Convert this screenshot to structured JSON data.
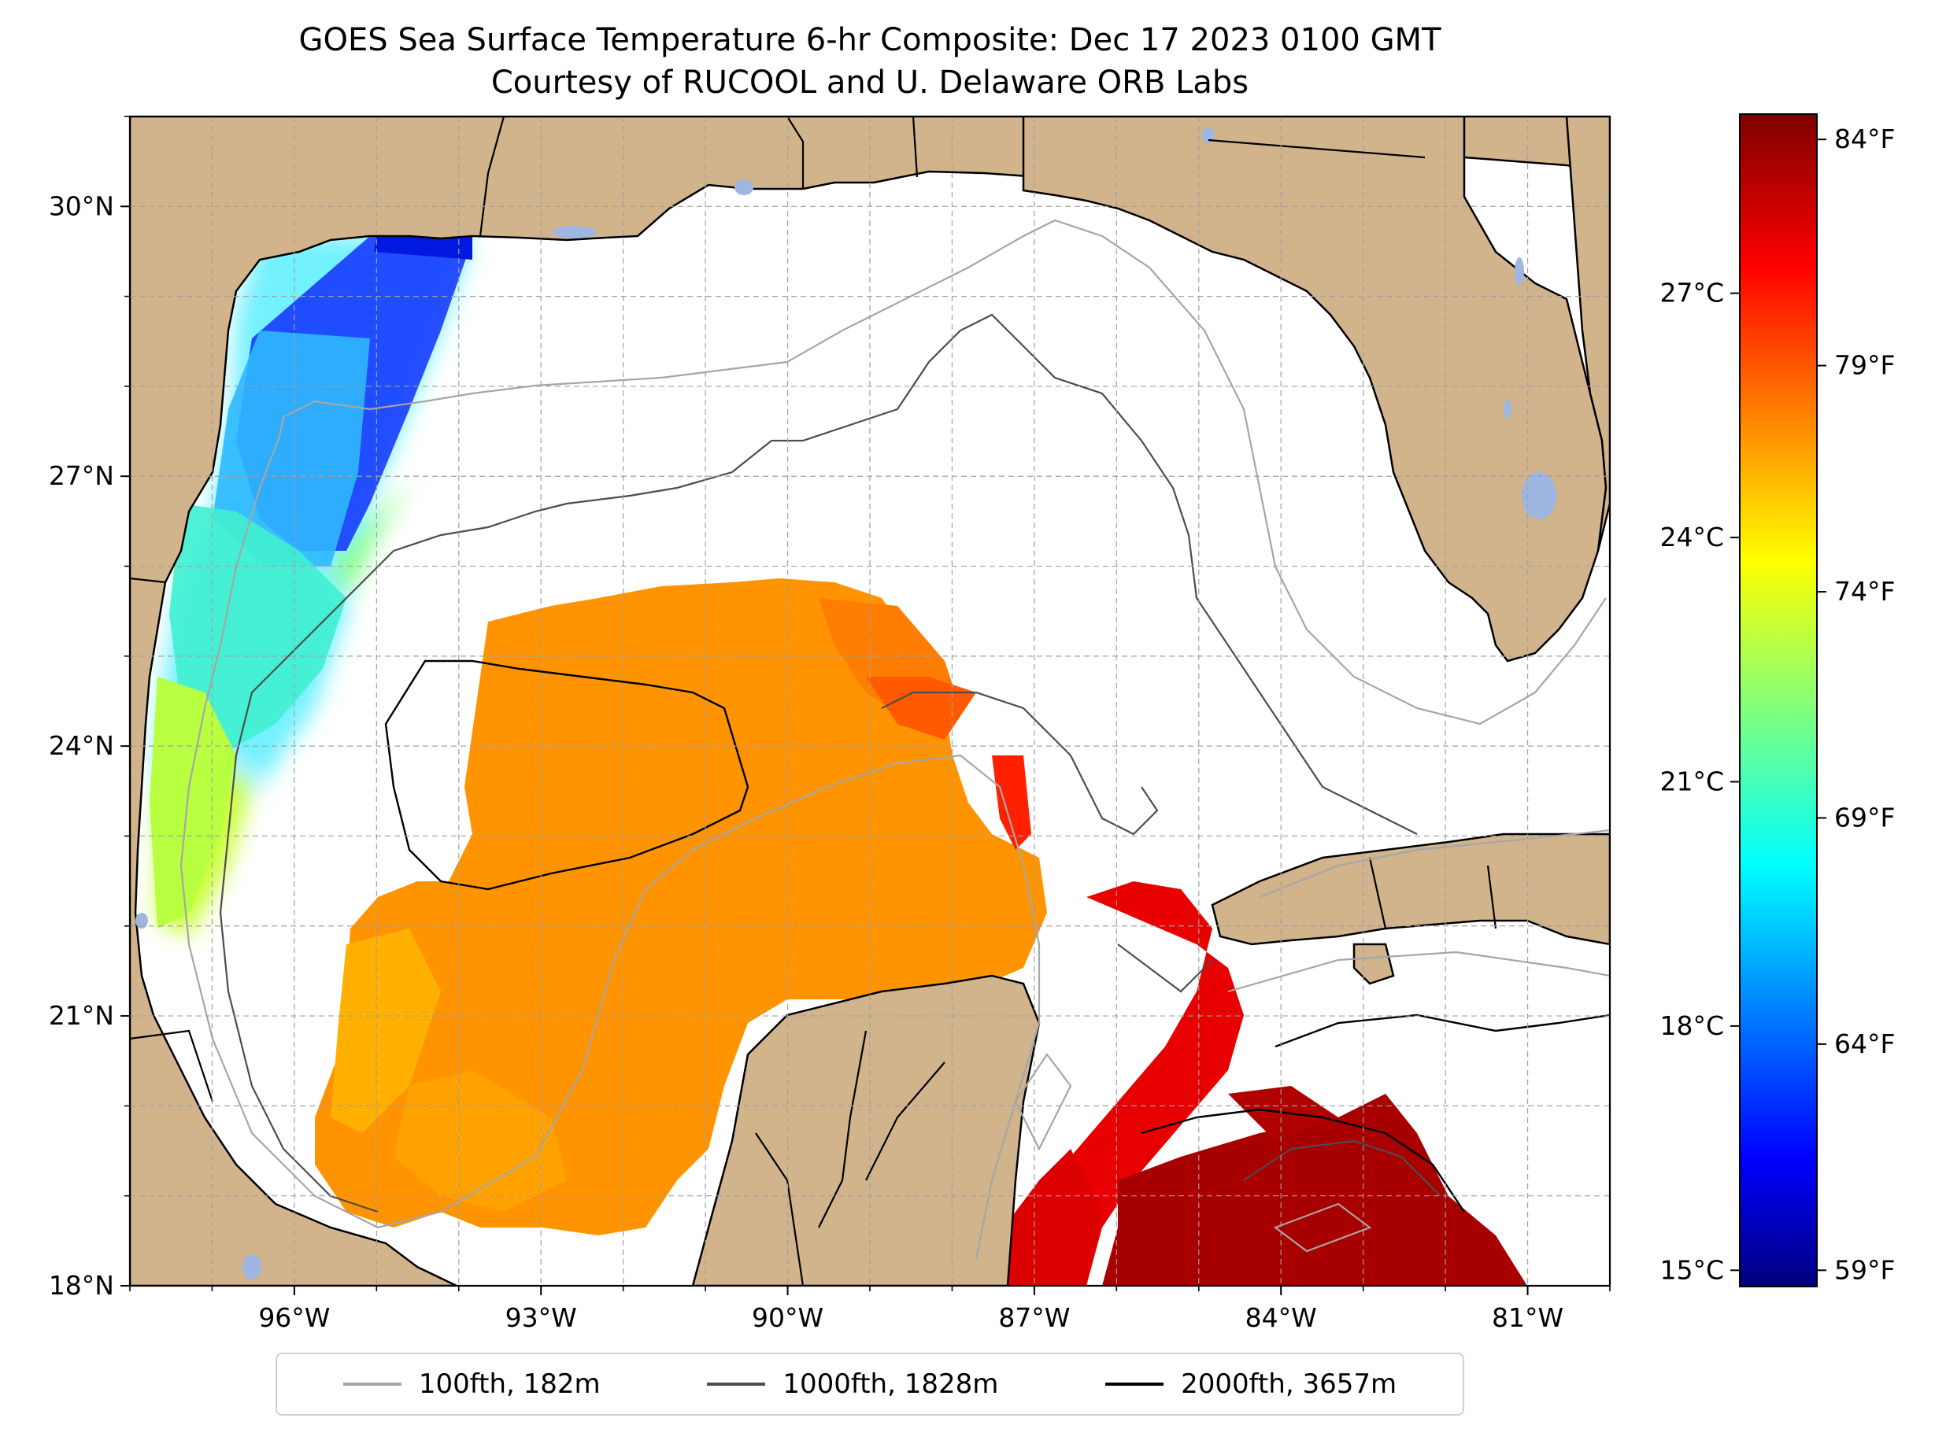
{
  "title": {
    "line1": "GOES Sea Surface Temperature 6-hr Composite: Dec 17 2023 0100 GMT",
    "line2": "Courtesy of RUCOOL and U. Delaware ORB Labs"
  },
  "map": {
    "lon_range": [
      -98,
      -80
    ],
    "lat_range": [
      18,
      31
    ],
    "lat_ticks": [
      {
        "value": 30,
        "label": "30°N"
      },
      {
        "value": 27,
        "label": "27°N"
      },
      {
        "value": 24,
        "label": "24°N"
      },
      {
        "value": 21,
        "label": "21°N"
      },
      {
        "value": 18,
        "label": "18°N"
      }
    ],
    "lon_ticks": [
      {
        "value": -96,
        "label": "96°W"
      },
      {
        "value": -93,
        "label": "93°W"
      },
      {
        "value": -90,
        "label": "90°W"
      },
      {
        "value": -87,
        "label": "87°W"
      },
      {
        "value": -84,
        "label": "84°W"
      },
      {
        "value": -81,
        "label": "81°W"
      }
    ],
    "gridlines": true,
    "land_color": "#d2b48c",
    "lake_color": "#9fb6e0",
    "ocean_nodata_color": "#ffffff"
  },
  "colorbar": {
    "colormap": "jet",
    "celsius_range": [
      14.8,
      29.2
    ],
    "celsius_ticks": [
      {
        "value": 15,
        "label": "15°C"
      },
      {
        "value": 18,
        "label": "18°C"
      },
      {
        "value": 21,
        "label": "21°C"
      },
      {
        "value": 24,
        "label": "24°C"
      },
      {
        "value": 27,
        "label": "27°C"
      }
    ],
    "fahrenheit_ticks": [
      {
        "value": 59,
        "label": "59°F"
      },
      {
        "value": 64,
        "label": "64°F"
      },
      {
        "value": 69,
        "label": "69°F"
      },
      {
        "value": 74,
        "label": "74°F"
      },
      {
        "value": 79,
        "label": "79°F"
      },
      {
        "value": 84,
        "label": "84°F"
      }
    ]
  },
  "legend": {
    "placement": "bottom-center",
    "items": [
      {
        "label": "100fth, 182m",
        "color": "#a6a6a6"
      },
      {
        "label": "1000fth, 1828m",
        "color": "#4d4d4d"
      },
      {
        "label": "2000fth, 3657m",
        "color": "#000000"
      }
    ]
  }
}
